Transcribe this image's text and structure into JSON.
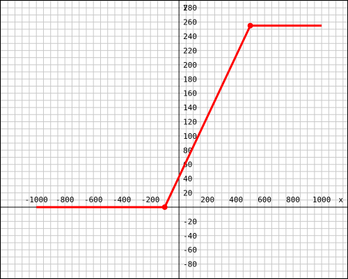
{
  "chart_data": {
    "type": "line",
    "xlabel": "x",
    "ylabel": "y",
    "xlim": [
      -1250,
      1180
    ],
    "ylim": [
      -100,
      290
    ],
    "grid": true,
    "grid_step": {
      "x": 50,
      "y": 10
    },
    "x_ticks": [
      -1000,
      -800,
      -600,
      -400,
      -200,
      200,
      400,
      600,
      800,
      1000
    ],
    "y_ticks": [
      -80,
      -60,
      -40,
      -20,
      20,
      40,
      60,
      80,
      100,
      120,
      140,
      160,
      180,
      200,
      220,
      240,
      260,
      280
    ],
    "series": [
      {
        "x": [
          -1000,
          -100,
          500,
          1000
        ],
        "y": [
          0,
          0,
          255,
          255
        ],
        "color": "#ff0000",
        "markers": [
          {
            "x": -100,
            "y": 0
          },
          {
            "x": 500,
            "y": 255
          }
        ]
      }
    ],
    "colors": {
      "grid": "#c8c8c8",
      "axis": "#000000",
      "series": "#ff0000"
    }
  }
}
